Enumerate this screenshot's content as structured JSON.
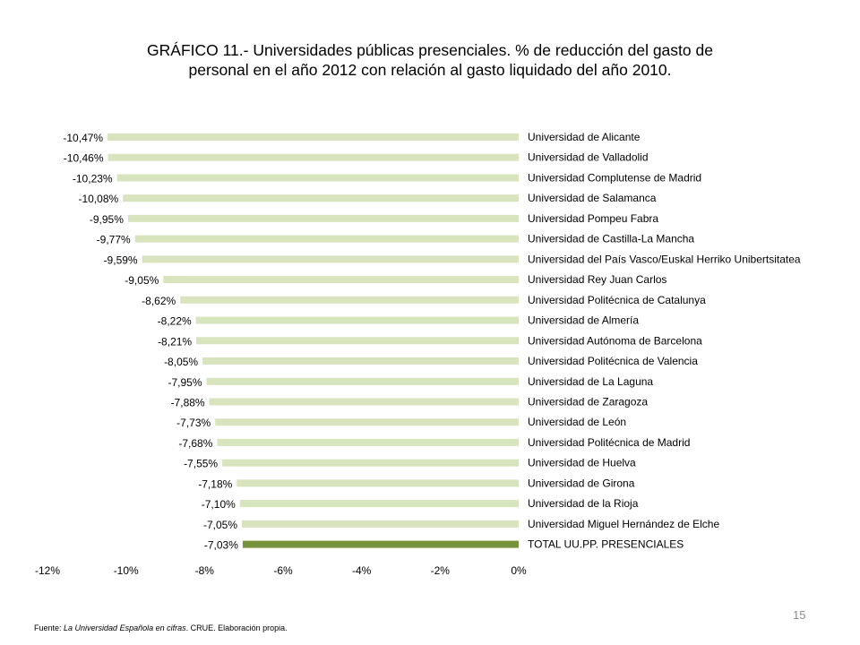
{
  "title": {
    "line1": "GRÁFICO 11.- Universidades públicas presenciales. % de reducción del gasto de",
    "line2": "personal en el año 2012 con relación al gasto liquidado del año 2010."
  },
  "chart_data": {
    "type": "bar",
    "orientation": "horizontal",
    "title": "GRÁFICO 11.- Universidades públicas presenciales. % de reducción del gasto de personal en el año 2012 con relación al gasto liquidado del año 2010.",
    "xlabel": "",
    "ylabel": "",
    "xlim": [
      -12,
      0
    ],
    "grid": false,
    "legend": "none",
    "x_ticks": [
      "-12%",
      "-10%",
      "-8%",
      "-6%",
      "-4%",
      "-2%",
      "0%"
    ],
    "x_tick_values": [
      -12,
      -10,
      -8,
      -6,
      -4,
      -2,
      0
    ],
    "categories": [
      "Universidad de Alicante",
      "Universidad de Valladolid",
      "Universidad Complutense de Madrid",
      "Universidad de Salamanca",
      "Universidad Pompeu Fabra",
      "Universidad de Castilla-La Mancha",
      "Universidad del País Vasco/Euskal Herriko Unibertsitatea",
      "Universidad Rey Juan Carlos",
      "Universidad Politécnica de Catalunya",
      "Universidad de Almería",
      "Universidad Autónoma de Barcelona",
      "Universidad Politécnica de Valencia",
      "Universidad de La Laguna",
      "Universidad de Zaragoza",
      "Universidad de León",
      "Universidad Politécnica de Madrid",
      "Universidad de Huelva",
      "Universidad de Girona",
      "Universidad de la Rioja",
      "Universidad Miguel Hernández de Elche",
      "TOTAL UU.PP. PRESENCIALES"
    ],
    "values": [
      -10.47,
      -10.46,
      -10.23,
      -10.08,
      -9.95,
      -9.77,
      -9.59,
      -9.05,
      -8.62,
      -8.22,
      -8.21,
      -8.05,
      -7.95,
      -7.88,
      -7.73,
      -7.68,
      -7.55,
      -7.18,
      -7.1,
      -7.05,
      -7.03
    ],
    "value_labels": [
      "-10,47%",
      "-10,46%",
      "-10,23%",
      "-10,08%",
      "-9,95%",
      "-9,77%",
      "-9,59%",
      "-9,05%",
      "-8,62%",
      "-8,22%",
      "-8,21%",
      "-8,05%",
      "-7,95%",
      "-7,88%",
      "-7,73%",
      "-7,68%",
      "-7,55%",
      "-7,18%",
      "-7,10%",
      "-7,05%",
      "-7,03%"
    ],
    "bar_color": "#d7e4bd",
    "highlight_color": "#77933c",
    "highlight_index": 20
  },
  "footer": {
    "prefix": "Fuente: ",
    "source_title": "La Universidad Española en cifras",
    "suffix": ". CRUE. Elaboración propia."
  },
  "page_number": "15"
}
